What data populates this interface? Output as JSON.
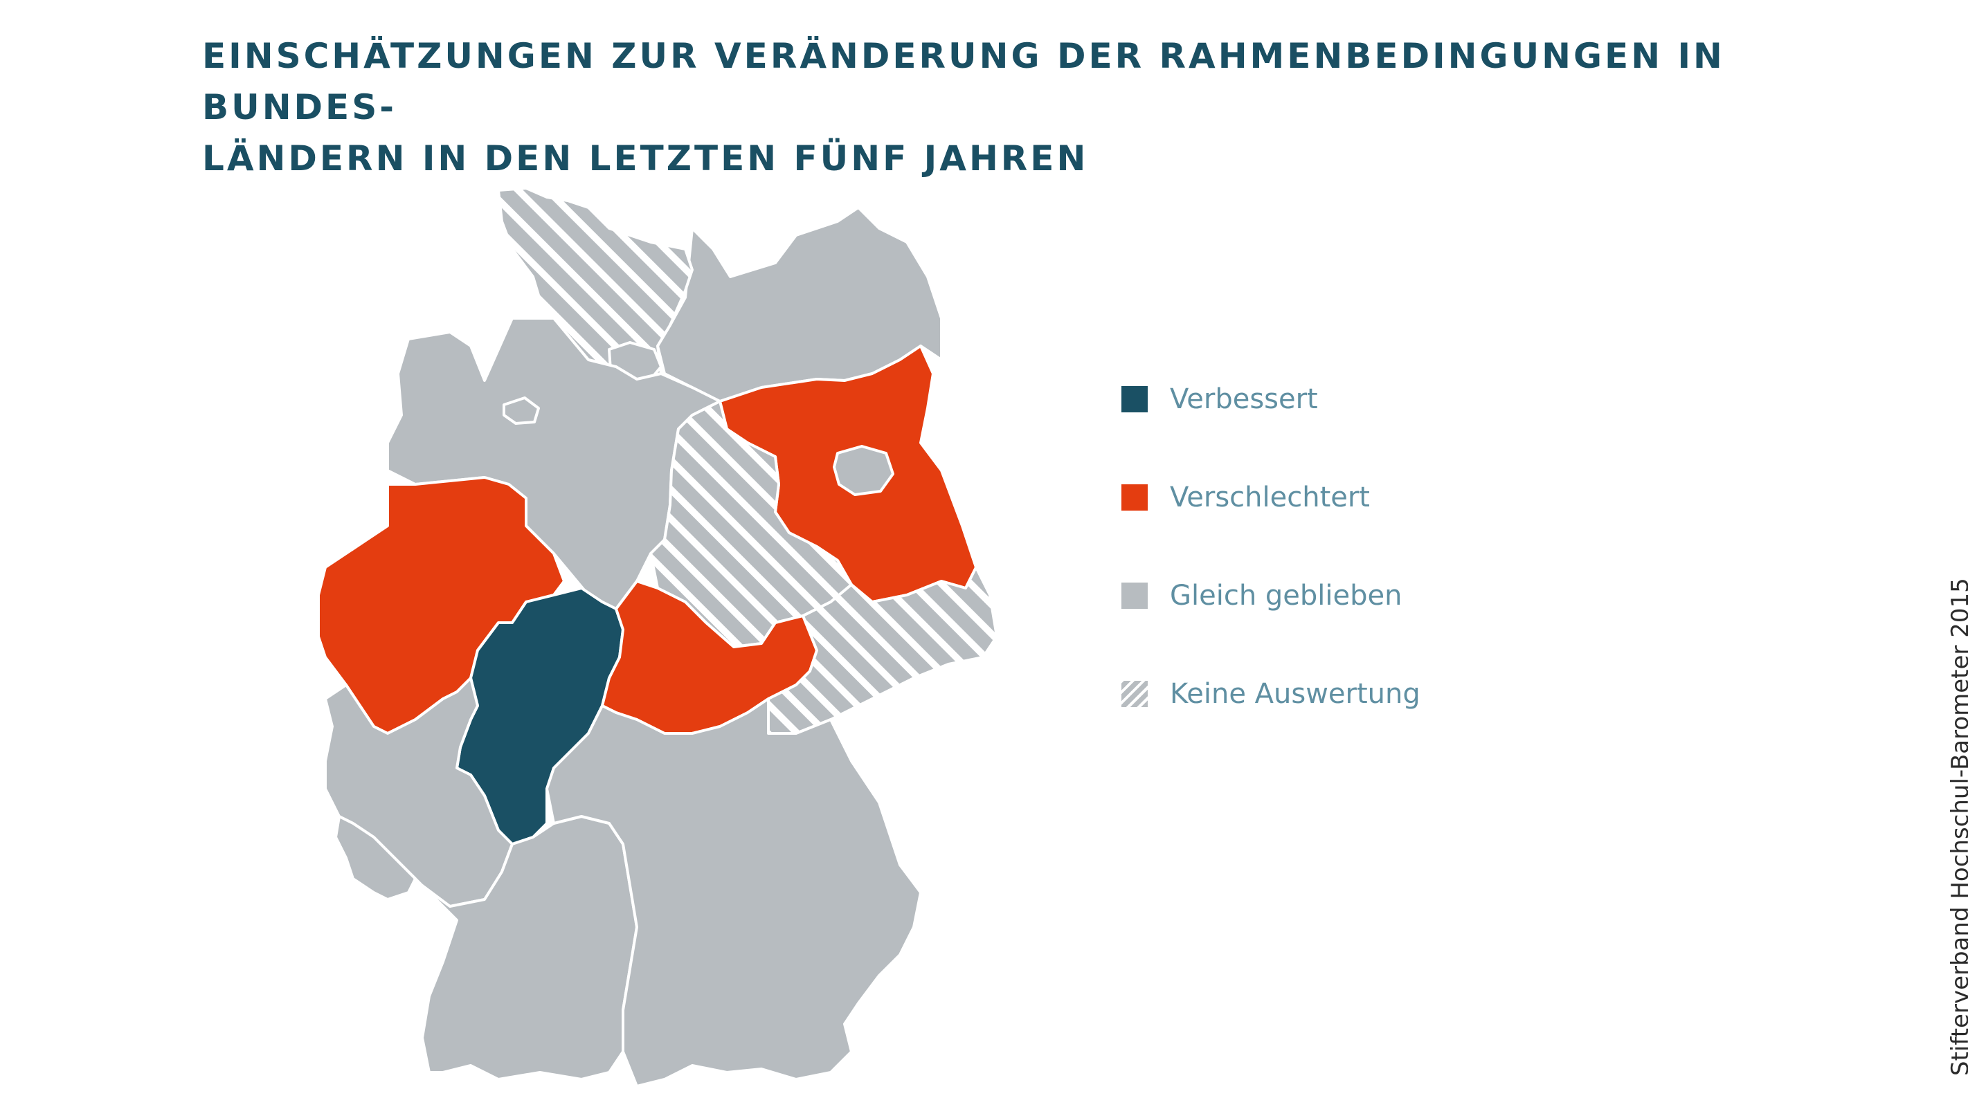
{
  "title": {
    "line1": "EINSCHÄTZUNGEN ZUR VERÄNDERUNG DER RAHMENBEDINGUNGEN IN BUNDES-",
    "line2": "LÄNDERN IN DEN LETZTEN FÜNF JAHREN"
  },
  "colors": {
    "verbessert": "#1a5064",
    "verschlechtert": "#e43d10",
    "gleich": "#b7bcc0",
    "keine_base": "#b7bcc0",
    "keine_stripe": "#ffffff",
    "title": "#1a4f63",
    "legend_text": "#5f8fa2"
  },
  "legend": [
    {
      "key": "verbessert",
      "label": "Verbessert"
    },
    {
      "key": "verschlechtert",
      "label": "Verschlechtert"
    },
    {
      "key": "gleich",
      "label": "Gleich geblieben"
    },
    {
      "key": "keine",
      "label": "Keine Auswertung"
    }
  ],
  "states": [
    {
      "id": "schleswig-holstein",
      "category": "keine"
    },
    {
      "id": "hamburg",
      "category": "gleich"
    },
    {
      "id": "mecklenburg-vorpommern",
      "category": "gleich"
    },
    {
      "id": "bremen",
      "category": "gleich"
    },
    {
      "id": "niedersachsen",
      "category": "gleich"
    },
    {
      "id": "berlin",
      "category": "gleich"
    },
    {
      "id": "brandenburg",
      "category": "verschlechtert"
    },
    {
      "id": "sachsen-anhalt",
      "category": "keine"
    },
    {
      "id": "nordrhein-westfalen",
      "category": "verschlechtert"
    },
    {
      "id": "hessen",
      "category": "verbessert"
    },
    {
      "id": "thueringen",
      "category": "verschlechtert"
    },
    {
      "id": "sachsen",
      "category": "keine"
    },
    {
      "id": "rheinland-pfalz",
      "category": "gleich"
    },
    {
      "id": "saarland",
      "category": "gleich"
    },
    {
      "id": "baden-wuerttemberg",
      "category": "gleich"
    },
    {
      "id": "bayern",
      "category": "gleich"
    }
  ],
  "source": "Stifterverband Hochschul-Barometer 2015"
}
